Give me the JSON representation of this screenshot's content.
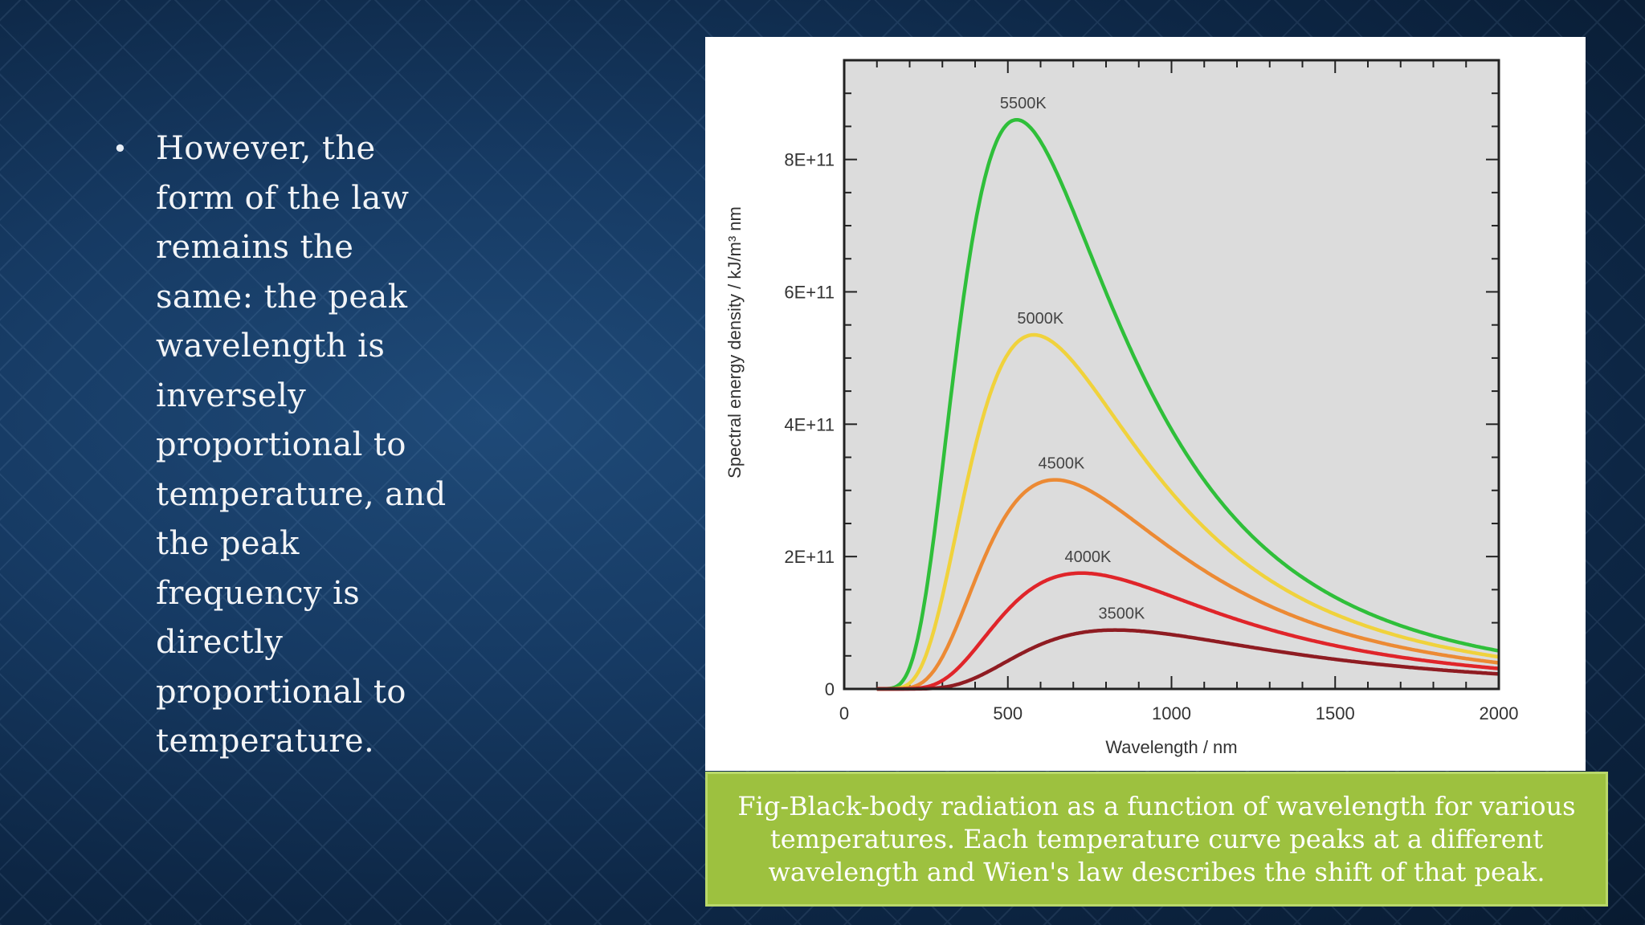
{
  "slide": {
    "bullet_marker": "•",
    "bullet_lines": [
      "However, the",
      "form of the law",
      "remains the",
      "same: the peak",
      "wavelength is",
      "inversely",
      "proportional to",
      "temperature, and",
      "the peak",
      "frequency is",
      "directly",
      "proportional to",
      "temperature."
    ],
    "caption_lines": [
      "Fig-Black-body radiation as a function of wavelength for various",
      "temperatures. Each temperature curve peaks at a different",
      "wavelength and Wien's law describes the shift of that peak."
    ]
  },
  "chart_data": {
    "type": "line",
    "title": "",
    "xlabel": "Wavelength / nm",
    "ylabel": "Spectral energy density / kJ/m³ nm",
    "xlim": [
      0,
      2000
    ],
    "ylim": [
      0,
      950000000000
    ],
    "x_ticks": [
      0,
      500,
      1000,
      1500,
      2000
    ],
    "x_tick_labels": [
      "0",
      "500",
      "1000",
      "1500",
      "2000"
    ],
    "y_ticks": [
      0,
      200000000000,
      400000000000,
      600000000000,
      800000000000
    ],
    "y_tick_labels": [
      "0",
      "2E+11",
      "4E+11",
      "6E+11",
      "8E+11"
    ],
    "grid": false,
    "plot_background": "#dcdcdc",
    "series": [
      {
        "name": "5500K",
        "temperature": 5500,
        "color": "#2fbf3a",
        "peak_x": 527,
        "peak_y": 860000000000
      },
      {
        "name": "5000K",
        "temperature": 5000,
        "color": "#f0d23c",
        "peak_x": 580,
        "peak_y": 535000000000
      },
      {
        "name": "4500K",
        "temperature": 4500,
        "color": "#ec8a34",
        "peak_x": 644,
        "peak_y": 316000000000
      },
      {
        "name": "4000K",
        "temperature": 4000,
        "color": "#e0252a",
        "peak_x": 725,
        "peak_y": 175000000000
      },
      {
        "name": "3500K",
        "temperature": 3500,
        "color": "#8f1c22",
        "peak_x": 828,
        "peak_y": 89000000000
      }
    ]
  }
}
